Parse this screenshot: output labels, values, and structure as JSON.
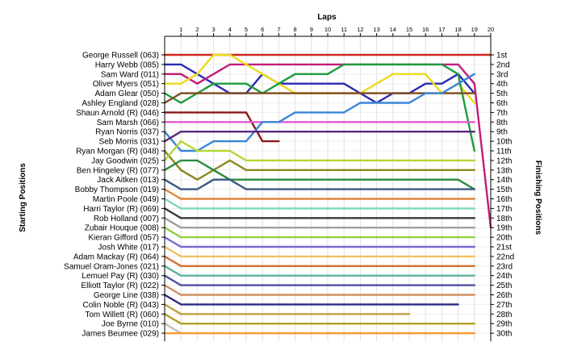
{
  "chart_data": {
    "type": "line",
    "title": "Laps",
    "ylabel_left": "Starting Positions",
    "ylabel_right": "Finishing Positions",
    "laps": [
      1,
      2,
      3,
      4,
      5,
      6,
      7,
      8,
      9,
      10,
      11,
      12,
      13,
      14,
      15,
      16,
      17,
      18,
      19,
      20
    ],
    "finishing_labels": [
      "1st",
      "2nd",
      "3rd",
      "4th",
      "5th",
      "6th",
      "7th",
      "8th",
      "9th",
      "10th",
      "11th",
      "12th",
      "13th",
      "14th",
      "15th",
      "16th",
      "17th",
      "18th",
      "19th",
      "20th",
      "21st",
      "22nd",
      "23rd",
      "24th",
      "25th",
      "26th",
      "27th",
      "28th",
      "29th",
      "30th"
    ],
    "drivers": [
      "George Russell (063)",
      "Harry Webb (085)",
      "Sam Ward (011)",
      "Oliver Myers (051)",
      "Adam Glear (050)",
      "Ashley England (028)",
      "Shaun Arnold (R) (046)",
      "Sam Marsh (066)",
      "Ryan Norris (037)",
      "Seb Morris (031)",
      "Ryan Morgan (R) (048)",
      "Jay Goodwin (025)",
      "Ben Hingeley (R) (077)",
      "Jack Aitken (013)",
      "Bobby Thompson (019)",
      "Martin Poole (049)",
      "Harri Taylor (R) (069)",
      "Rob Holland (007)",
      "Zubair Houque (008)",
      "Kieran Gifford (057)",
      "Josh White (017)",
      "Adam Mackay  (R) (064)",
      "Samuel Oram-Jones (021)",
      "Lemuel Pay (R) (030)",
      "Elliott Taylor (R) (022)",
      "George Line (038)",
      "Colin Noble (R) (043)",
      "Tom Willett (R) (060)",
      "Joe Byrne (010)",
      "James Beumee (029)"
    ],
    "series": [
      {
        "color": "#d0281f",
        "positions": [
          1,
          1,
          1,
          1,
          1,
          1,
          1,
          1,
          1,
          1,
          1,
          1,
          1,
          1,
          1,
          1,
          1,
          1,
          1,
          1,
          1
        ]
      },
      {
        "color": "#2b2bb3",
        "positions": [
          2,
          2,
          3,
          4,
          5,
          5,
          3,
          4,
          4,
          4,
          4,
          4,
          5,
          6,
          5,
          5,
          4,
          4,
          3,
          5,
          null
        ]
      },
      {
        "color": "#c21c7a",
        "positions": [
          3,
          3,
          4,
          3,
          2,
          2,
          2,
          2,
          2,
          2,
          2,
          2,
          2,
          2,
          2,
          2,
          2,
          2,
          2,
          4,
          19
        ]
      },
      {
        "color": "#ebdc1e",
        "positions": [
          4,
          4,
          3,
          1,
          1,
          2,
          3,
          4,
          5,
          5,
          5,
          5,
          5,
          4,
          3,
          3,
          3,
          5,
          4,
          6,
          null
        ]
      },
      {
        "color": "#1e9c3c",
        "positions": [
          5,
          6,
          5,
          4,
          4,
          4,
          5,
          4,
          3,
          3,
          3,
          2,
          2,
          2,
          2,
          2,
          2,
          2,
          3,
          11,
          null
        ]
      },
      {
        "color": "#7d4a1e",
        "positions": [
          6,
          5,
          5,
          5,
          5,
          5,
          5,
          5,
          5,
          5,
          5,
          5,
          5,
          5,
          5,
          5,
          5,
          5,
          5,
          5,
          null
        ]
      },
      {
        "color": "#8b1a1a",
        "positions": [
          7,
          7,
          7,
          7,
          7,
          7,
          10,
          10,
          null,
          null,
          null,
          null,
          null,
          null,
          null,
          null,
          null,
          null,
          null,
          null,
          null
        ]
      },
      {
        "color": "#e05ad0",
        "positions": [
          8,
          8,
          8,
          8,
          8,
          8,
          8,
          8,
          8,
          8,
          8,
          8,
          8,
          8,
          8,
          8,
          8,
          8,
          8,
          8,
          null
        ]
      },
      {
        "color": "#3a86d6",
        "positions": [
          9,
          11,
          11,
          10,
          10,
          10,
          8,
          8,
          7,
          7,
          7,
          7,
          6,
          6,
          6,
          6,
          5,
          5,
          4,
          3,
          null
        ]
      },
      {
        "color": "#5a2a7a",
        "positions": [
          10,
          9,
          9,
          9,
          9,
          9,
          9,
          9,
          9,
          9,
          9,
          9,
          9,
          9,
          9,
          9,
          9,
          9,
          9,
          9,
          null
        ]
      },
      {
        "color": "#8a8a20",
        "positions": [
          11,
          13,
          14,
          13,
          12,
          13,
          13,
          13,
          13,
          13,
          13,
          13,
          13,
          13,
          13,
          13,
          13,
          13,
          13,
          13,
          null
        ]
      },
      {
        "color": "#b5d636",
        "positions": [
          12,
          10,
          11,
          11,
          11,
          12,
          12,
          12,
          12,
          12,
          12,
          12,
          12,
          12,
          12,
          12,
          12,
          12,
          12,
          12,
          null
        ]
      },
      {
        "color": "#2b8b3c",
        "positions": [
          13,
          12,
          12,
          13,
          14,
          14,
          14,
          14,
          14,
          14,
          14,
          14,
          14,
          14,
          14,
          14,
          14,
          14,
          14,
          15,
          null
        ]
      },
      {
        "color": "#3a5a80",
        "positions": [
          14,
          15,
          15,
          14,
          14,
          15,
          15,
          15,
          15,
          15,
          15,
          15,
          15,
          15,
          15,
          15,
          15,
          15,
          15,
          15,
          null
        ]
      },
      {
        "color": "#e0863a",
        "positions": [
          15,
          16,
          16,
          16,
          16,
          16,
          16,
          16,
          16,
          16,
          16,
          16,
          16,
          16,
          16,
          16,
          16,
          16,
          16,
          16,
          null
        ]
      },
      {
        "color": "#7dd6c0",
        "positions": [
          16,
          17,
          17,
          17,
          17,
          17,
          17,
          17,
          17,
          17,
          17,
          17,
          17,
          17,
          17,
          17,
          17,
          17,
          17,
          17,
          null
        ]
      },
      {
        "color": "#3a3a3a",
        "positions": [
          17,
          18,
          18,
          18,
          18,
          18,
          18,
          18,
          18,
          18,
          18,
          18,
          18,
          18,
          18,
          18,
          18,
          18,
          18,
          18,
          null
        ]
      },
      {
        "color": "#a0a0a0",
        "positions": [
          18,
          19,
          19,
          19,
          19,
          19,
          19,
          19,
          19,
          19,
          19,
          19,
          19,
          19,
          19,
          19,
          19,
          19,
          19,
          19,
          null
        ]
      },
      {
        "color": "#90d040",
        "positions": [
          19,
          20,
          20,
          20,
          20,
          20,
          20,
          20,
          20,
          20,
          20,
          20,
          20,
          20,
          20,
          20,
          20,
          20,
          20,
          20,
          null
        ]
      },
      {
        "color": "#7a6ad0",
        "positions": [
          20,
          21,
          21,
          21,
          21,
          21,
          21,
          21,
          21,
          21,
          21,
          21,
          21,
          21,
          21,
          21,
          21,
          21,
          21,
          21,
          null
        ]
      },
      {
        "color": "#f0c060",
        "positions": [
          21,
          22,
          22,
          22,
          22,
          22,
          22,
          22,
          22,
          22,
          22,
          22,
          22,
          22,
          22,
          22,
          22,
          22,
          22,
          22,
          null
        ]
      },
      {
        "color": "#d07030",
        "positions": [
          22,
          23,
          23,
          23,
          23,
          23,
          23,
          23,
          23,
          23,
          23,
          23,
          23,
          23,
          23,
          23,
          23,
          23,
          23,
          23,
          null
        ]
      },
      {
        "color": "#60b0a0",
        "positions": [
          23,
          24,
          24,
          24,
          24,
          24,
          24,
          24,
          24,
          24,
          24,
          24,
          24,
          24,
          24,
          24,
          24,
          24,
          24,
          24,
          null
        ]
      },
      {
        "color": "#5050a0",
        "positions": [
          24,
          25,
          25,
          25,
          25,
          25,
          25,
          25,
          25,
          25,
          25,
          25,
          25,
          25,
          25,
          25,
          25,
          25,
          25,
          25,
          null
        ]
      },
      {
        "color": "#d09060",
        "positions": [
          25,
          26,
          26,
          26,
          26,
          26,
          26,
          26,
          26,
          26,
          26,
          26,
          26,
          26,
          26,
          26,
          26,
          26,
          26,
          26,
          null
        ]
      },
      {
        "color": "#2a2a80",
        "positions": [
          26,
          27,
          27,
          27,
          27,
          27,
          27,
          27,
          27,
          27,
          27,
          27,
          27,
          27,
          27,
          27,
          27,
          27,
          27,
          null,
          null
        ]
      },
      {
        "color": "#c0a040",
        "positions": [
          27,
          28,
          28,
          28,
          28,
          28,
          28,
          28,
          28,
          28,
          28,
          28,
          28,
          28,
          28,
          28,
          null,
          null,
          null,
          null,
          null
        ]
      },
      {
        "color": "#b0a020",
        "positions": [
          28,
          29,
          29,
          29,
          29,
          29,
          29,
          29,
          29,
          29,
          29,
          29,
          29,
          29,
          29,
          29,
          29,
          29,
          29,
          29,
          null
        ]
      },
      {
        "color": "#c0c0c0",
        "positions": [
          29,
          30,
          30,
          30,
          30,
          30,
          30,
          30,
          30,
          30,
          30,
          30,
          30,
          30,
          30,
          30,
          30,
          30,
          30,
          30,
          null
        ]
      },
      {
        "color": "#ff9a30",
        "positions": [
          30,
          30,
          30,
          30,
          30,
          30,
          30,
          30,
          30,
          30,
          30,
          30,
          30,
          30,
          30,
          30,
          30,
          30,
          30,
          30,
          null
        ]
      }
    ]
  }
}
